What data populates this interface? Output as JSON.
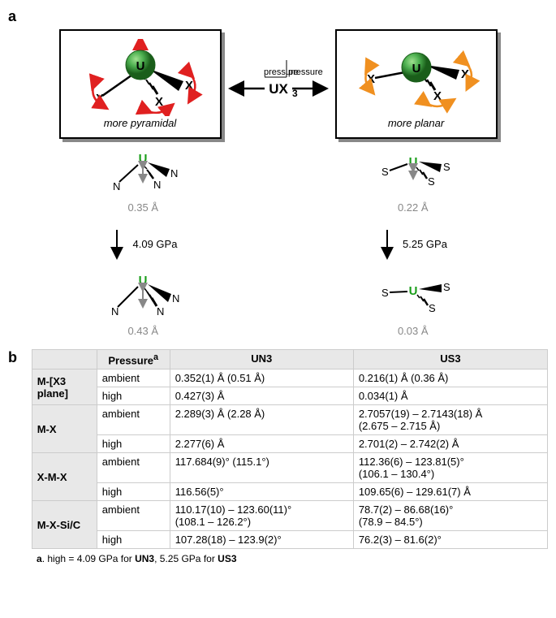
{
  "panelA": {
    "label": "a",
    "leftBox": {
      "centerAtom": "U",
      "ligand": "X",
      "caption": "more pyramidal",
      "arrowColor": "#e02020"
    },
    "rightBox": {
      "centerAtom": "U",
      "ligand": "X",
      "caption": "more planar",
      "arrowColor": "#f09020"
    },
    "centerLabel": "UX",
    "centerSubscript": "3",
    "pressureLabel": "pressure",
    "leftMolecule": {
      "topAtom": "U",
      "ligand": "N",
      "topDistance": "0.35 Å",
      "arrowPressure": "4.09 GPa",
      "bottomDistance": "0.43 Å"
    },
    "rightMolecule": {
      "topAtom": "U",
      "ligand": "S",
      "topDistance": "0.22 Å",
      "arrowPressure": "5.25 GPa",
      "bottomDistance": "0.03 Å"
    }
  },
  "panelB": {
    "label": "b",
    "headers": {
      "pressure": "Pressure",
      "pressureSup": "a",
      "col1": "UN3",
      "col2": "US3"
    },
    "rows": [
      {
        "label": "M-[X3 plane]",
        "rowspan": 2,
        "subrows": [
          {
            "pressure": "ambient",
            "un3": "0.352(1) Å    (0.51 Å)",
            "us3": "0.216(1) Å    (0.36 Å)"
          },
          {
            "pressure": "high",
            "un3": "0.427(3) Å",
            "us3": "0.034(1) Å"
          }
        ]
      },
      {
        "label": "M-X",
        "rowspan": 2,
        "subrows": [
          {
            "pressure": "ambient",
            "un3": "2.289(3) Å    (2.28 Å)",
            "us3": "2.7057(19) – 2.7143(18) Å\n(2.675 – 2.715 Å)"
          },
          {
            "pressure": "high",
            "un3": "2.277(6) Å",
            "us3": "2.701(2) – 2.742(2) Å"
          }
        ]
      },
      {
        "label": "X-M-X",
        "rowspan": 2,
        "subrows": [
          {
            "pressure": "ambient",
            "un3": "117.684(9)° (115.1°)",
            "us3": "112.36(6) – 123.81(5)°\n(106.1 – 130.4°)"
          },
          {
            "pressure": "high",
            "un3": "116.56(5)°",
            "us3": "109.65(6) – 129.61(7) Å"
          }
        ]
      },
      {
        "label": "M-X-Si/C",
        "rowspan": 2,
        "subrows": [
          {
            "pressure": "ambient",
            "un3": "110.17(10) – 123.60(11)°\n(108.1 – 126.2°)",
            "us3": "78.7(2) – 86.68(16)°\n(78.9 – 84.5°)"
          },
          {
            "pressure": "high",
            "un3": "107.28(18) – 123.9(2)°",
            "us3": "76.2(3) – 81.6(2)°"
          }
        ]
      }
    ],
    "footnote": {
      "label": "a",
      "text": ". high = 4.09 GPa for ",
      "bold1": "UN3",
      "text2": ", 5.25 GPa for ",
      "bold2": "US3"
    }
  },
  "colors": {
    "uGreen": "#1a9e1a",
    "grayText": "#888888",
    "redArrow": "#e02020",
    "orangeArrow": "#f09020"
  }
}
